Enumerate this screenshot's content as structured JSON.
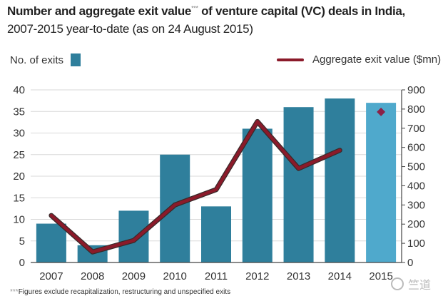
{
  "header": {
    "title": "Number and aggregate exit value",
    "title_mark": "***",
    "title_suffix": " of venture capital (VC) deals in India,",
    "subtitle": "2007-2015 year-to-date (as on 24 August 2015)"
  },
  "footnote": {
    "mark": "***",
    "text": "Figures exclude recapitalization, restructuring and unspecified exits"
  },
  "watermark": {
    "text": "竺道"
  },
  "chart_data": {
    "type": "bar",
    "categories": [
      "2007",
      "2008",
      "2009",
      "2010",
      "2011",
      "2012",
      "2013",
      "2014",
      "2015"
    ],
    "series": [
      {
        "name": "No. of exits",
        "axis": "left",
        "type": "bar",
        "values": [
          9,
          4,
          12,
          25,
          13,
          31,
          36,
          38,
          37
        ]
      },
      {
        "name": "Aggregate exit value ($mn)",
        "axis": "right",
        "type": "line",
        "values": [
          245,
          55,
          115,
          300,
          380,
          735,
          490,
          585,
          null
        ]
      }
    ],
    "point_markers": [
      {
        "category": "2015",
        "axis": "right",
        "value": 785
      }
    ],
    "left_axis": {
      "min": 0,
      "max": 40,
      "ticks": [
        0,
        5,
        10,
        15,
        20,
        25,
        30,
        35,
        40
      ]
    },
    "right_axis": {
      "min": 0,
      "max": 900,
      "ticks": [
        0,
        100,
        200,
        300,
        400,
        500,
        600,
        700,
        800,
        900
      ]
    },
    "grid": true,
    "legend_position": "top",
    "colors": {
      "bar": "#2f7f9c",
      "bar_highlight": "#4fa9cc",
      "line": "#8b1a2a",
      "line_outline": "#3a2a2a",
      "marker": "#8b2248",
      "grid": "#d8d8d8",
      "axis": "#444444"
    }
  }
}
